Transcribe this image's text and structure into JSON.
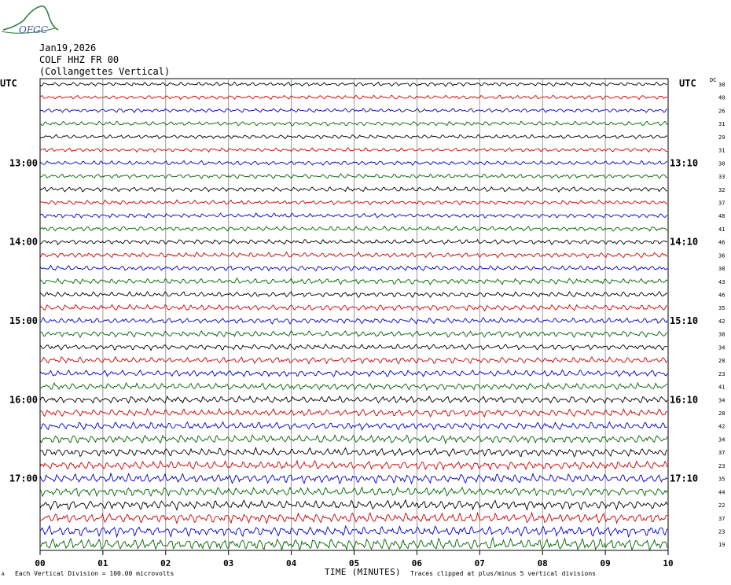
{
  "logo": {
    "text": "OFGC",
    "accent": "#2f7d3a",
    "text_color": "#3a57a8"
  },
  "header": {
    "date": "Jan19,2026",
    "station": "COLF HHZ FR 00",
    "location": "(Collangettes Vertical)"
  },
  "utc_left": "UTC",
  "utc_right": "UTC",
  "dc_label": "DC",
  "footer": {
    "mark": "A",
    "left": "Each Vertical Division =  100.00 microvolts",
    "right": "Traces clipped at plus/minus 5 vertical divisions"
  },
  "chart_data": {
    "type": "line",
    "title": "",
    "xlabel": "TIME (MINUTES)",
    "ylabel": "",
    "xlim": [
      0,
      10
    ],
    "x_ticks": [
      "00",
      "01",
      "02",
      "03",
      "04",
      "05",
      "06",
      "07",
      "08",
      "09",
      "10"
    ],
    "grid": true,
    "trace_colors": [
      "#000000",
      "#d00000",
      "#0000c8",
      "#006400"
    ],
    "left_time_labels": [
      {
        "trace": 6,
        "label": "13:00"
      },
      {
        "trace": 12,
        "label": "14:00"
      },
      {
        "trace": 18,
        "label": "15:00"
      },
      {
        "trace": 24,
        "label": "16:00"
      },
      {
        "trace": 30,
        "label": "17:00"
      }
    ],
    "right_time_labels": [
      {
        "trace": 6,
        "label": "13:10"
      },
      {
        "trace": 12,
        "label": "14:10"
      },
      {
        "trace": 18,
        "label": "15:10"
      },
      {
        "trace": 24,
        "label": "16:10"
      },
      {
        "trace": 30,
        "label": "17:10"
      }
    ],
    "dc_values": [
      "30",
      "40",
      "26",
      "31",
      "29",
      "31",
      "30",
      "33",
      "32",
      "37",
      "48",
      "41",
      "46",
      "36",
      "38",
      "43",
      "46",
      "35",
      "42",
      "38",
      "34",
      "28",
      "23",
      "41",
      "34",
      "28",
      "42",
      "34",
      "37",
      "23",
      "35",
      "44",
      "22",
      "37",
      "23",
      "19"
    ],
    "amplitudes": [
      1.0,
      1.0,
      1.0,
      1.1,
      1.0,
      1.0,
      1.1,
      1.1,
      1.2,
      1.1,
      1.1,
      1.2,
      1.2,
      1.3,
      1.3,
      1.4,
      1.3,
      1.5,
      1.4,
      1.5,
      1.4,
      1.6,
      1.6,
      1.7,
      1.7,
      1.8,
      1.8,
      2.0,
      2.0,
      2.1,
      2.3,
      2.2,
      2.3,
      2.4,
      2.5,
      2.8
    ]
  }
}
